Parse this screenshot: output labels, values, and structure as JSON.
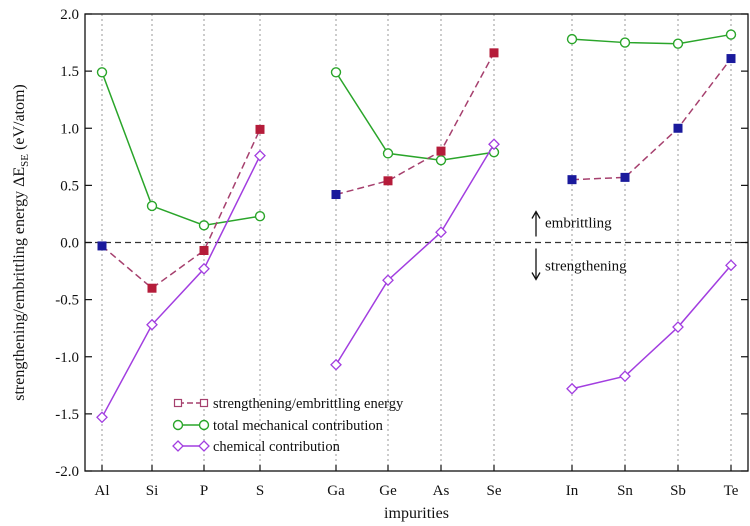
{
  "chart_data": {
    "type": "line",
    "title": "",
    "xlabel": "impurities",
    "ylabel_main": "strengthening/embrittling energy ΔE",
    "ylabel_sub": "SE",
    "ylabel_unit": " (eV/atom)",
    "ylim": [
      -2.0,
      2.0
    ],
    "yticks": [
      "-2.0",
      "-1.5",
      "-1.0",
      "-0.5",
      "0.0",
      "0.5",
      "1.0",
      "1.5",
      "2.0"
    ],
    "grid": "vertical dotted lines at each impurity",
    "legend_position": "bottom-left",
    "categories": [
      "Al",
      "Si",
      "P",
      "S",
      "Ga",
      "Ge",
      "As",
      "Se",
      "In",
      "Sn",
      "Sb",
      "Te"
    ],
    "groups": [
      [
        0,
        1,
        2,
        3
      ],
      [
        4,
        5,
        6,
        7
      ],
      [
        8,
        9,
        10,
        11
      ]
    ],
    "series": [
      {
        "name": "strengthening/embrittling energy",
        "color": "#a6406e",
        "marker": "square",
        "dashed": true,
        "values": [
          -0.03,
          -0.4,
          -0.07,
          0.99,
          0.42,
          0.54,
          0.8,
          1.66,
          0.55,
          0.57,
          1.0,
          1.61
        ],
        "marker_colors": [
          "#1a1a9c",
          "#b51c3a",
          "#b51c3a",
          "#b51c3a",
          "#1a1a9c",
          "#b51c3a",
          "#b51c3a",
          "#b51c3a",
          "#1a1a9c",
          "#1a1a9c",
          "#1a1a9c",
          "#1a1a9c"
        ]
      },
      {
        "name": "total mechanical contribution",
        "color": "#2aa52a",
        "marker": "circle",
        "dashed": false,
        "values": [
          1.49,
          0.32,
          0.15,
          0.23,
          1.49,
          0.78,
          0.72,
          0.79,
          1.78,
          1.75,
          1.74,
          1.82
        ]
      },
      {
        "name": "chemical contribution",
        "color": "#a23ee0",
        "marker": "diamond",
        "dashed": false,
        "values": [
          -1.53,
          -0.72,
          -0.23,
          0.76,
          -1.07,
          -0.33,
          0.09,
          0.86,
          -1.28,
          -1.17,
          -0.74,
          -0.2
        ]
      }
    ],
    "annotations": {
      "reference_line": 0.0,
      "up_label": "embrittling",
      "down_label": "strengthening"
    }
  }
}
